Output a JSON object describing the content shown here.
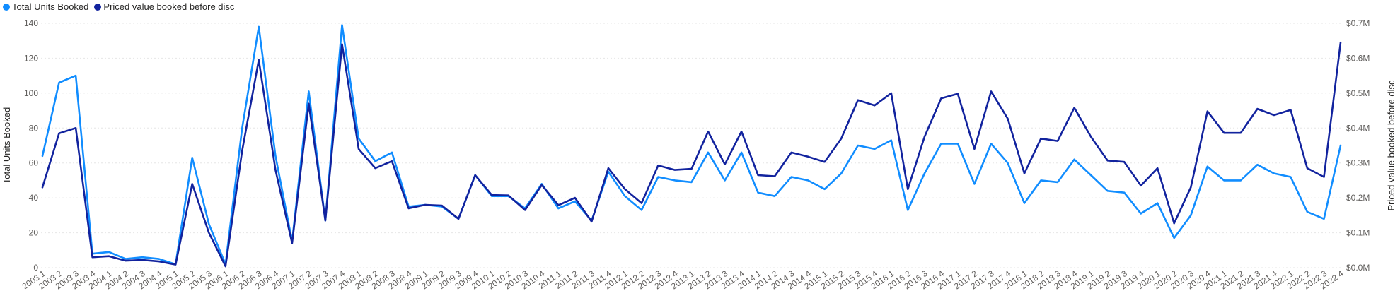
{
  "chart_data": {
    "type": "line",
    "title": "",
    "xlabel": "",
    "ylabel": "Total Units Booked",
    "y2label": "Priced value booked before disc",
    "ylim": [
      0,
      140
    ],
    "y2lim": [
      0,
      700000
    ],
    "yticks": [
      "0",
      "20",
      "40",
      "60",
      "80",
      "100",
      "120",
      "140"
    ],
    "y2ticks": [
      "$0.0M",
      "$0.1M",
      "$0.2M",
      "$0.3M",
      "$0.4M",
      "$0.5M",
      "$0.6M",
      "$0.7M"
    ],
    "grid": true,
    "legend_position": "top-left",
    "categories": [
      "2003 1",
      "2003 2",
      "2003 3",
      "2003 4",
      "2004 1",
      "2004 2",
      "2004 3",
      "2004 4",
      "2005 1",
      "2005 2",
      "2005 3",
      "2006 1",
      "2006 2",
      "2006 3",
      "2006 4",
      "2007 1",
      "2007 2",
      "2007 3",
      "2007 4",
      "2008 1",
      "2008 2",
      "2008 3",
      "2008 4",
      "2009 1",
      "2009 2",
      "2009 3",
      "2009 4",
      "2010 1",
      "2010 2",
      "2010 3",
      "2010 4",
      "2011 1",
      "2011 2",
      "2011 3",
      "2011 4",
      "2012 1",
      "2012 2",
      "2012 3",
      "2012 4",
      "2013 1",
      "2013 2",
      "2013 3",
      "2013 4",
      "2014 1",
      "2014 2",
      "2014 3",
      "2014 4",
      "2015 1",
      "2015 2",
      "2015 3",
      "2015 4",
      "2016 1",
      "2016 2",
      "2016 3",
      "2016 4",
      "2017 1",
      "2017 2",
      "2017 3",
      "2017 4",
      "2018 1",
      "2018 2",
      "2018 3",
      "2018 4",
      "2019 1",
      "2019 2",
      "2019 3",
      "2019 4",
      "2020 1",
      "2020 2",
      "2020 3",
      "2020 4",
      "2021 1",
      "2021 2",
      "2021 3",
      "2021 4",
      "2022 1",
      "2022 2",
      "2022 3",
      "2022 4"
    ],
    "series": [
      {
        "name": "Total Units Booked",
        "axis": "left",
        "color": "#118DFF",
        "values": [
          64,
          106,
          110,
          8,
          9,
          5,
          6,
          5,
          2,
          63,
          25,
          2,
          80,
          138,
          64,
          15,
          101,
          27,
          139,
          74,
          61,
          66,
          35,
          36,
          35,
          28,
          53,
          41,
          41,
          34,
          48,
          34,
          38,
          27,
          55,
          41,
          33,
          52,
          50,
          49,
          66,
          50,
          66,
          43,
          41,
          52,
          50,
          45,
          54,
          70,
          68,
          73,
          33,
          54,
          71,
          71,
          48,
          71,
          60,
          37,
          50,
          49,
          62,
          53,
          44,
          43,
          31,
          37,
          17,
          30,
          58,
          50,
          50,
          59,
          54,
          52,
          32,
          28,
          70
        ]
      },
      {
        "name": "Priced value booked before disc",
        "axis": "right",
        "color": "#12239E",
        "values": [
          230000,
          385000,
          400000,
          30000,
          33000,
          20000,
          22000,
          18000,
          9000,
          240000,
          100000,
          4000,
          335000,
          595000,
          280000,
          70000,
          470000,
          135000,
          640000,
          340000,
          285000,
          305000,
          170000,
          180000,
          178000,
          140000,
          265000,
          208000,
          207000,
          165000,
          237000,
          179000,
          200000,
          132000,
          285000,
          225000,
          185000,
          293000,
          280000,
          283000,
          390000,
          296000,
          390000,
          265000,
          262000,
          330000,
          318000,
          303000,
          370000,
          480000,
          465000,
          500000,
          225000,
          375000,
          485000,
          498000,
          340000,
          505000,
          427000,
          270000,
          370000,
          363000,
          458000,
          375000,
          307000,
          303000,
          235000,
          285000,
          127000,
          230000,
          448000,
          386000,
          386000,
          455000,
          437000,
          452000,
          285000,
          260000,
          645000
        ]
      }
    ]
  }
}
